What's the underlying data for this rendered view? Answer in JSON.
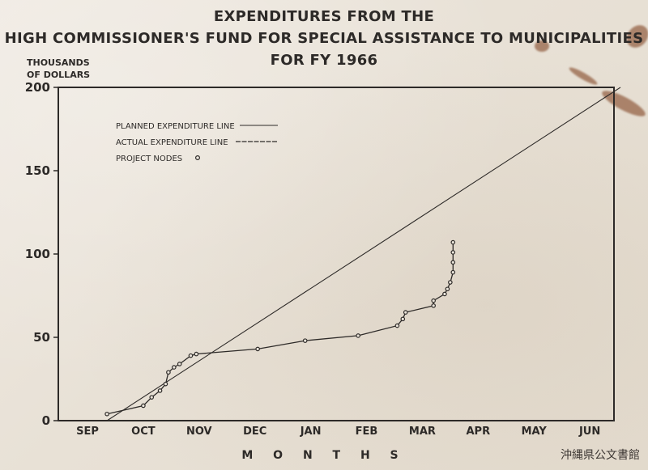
{
  "chart_data": {
    "type": "line",
    "title_lines": [
      "EXPENDITURES FROM THE",
      "HIGH COMMISSIONER'S FUND FOR SPECIAL ASSISTANCE TO MUNICIPALITIES",
      "FOR FY 1966"
    ],
    "ylabel_lines": [
      "THOUSANDS",
      "OF DOLLARS"
    ],
    "xlabel": "M O N T H S",
    "ylim": [
      0,
      200
    ],
    "yticks": [
      0,
      50,
      100,
      150,
      200
    ],
    "xticks": [
      "SEP",
      "OCT",
      "NOV",
      "DEC",
      "JAN",
      "FEB",
      "MAR",
      "APR",
      "MAY",
      "JUN"
    ],
    "grid": false,
    "legend_position": "top-left",
    "legend": [
      {
        "label": "PLANNED EXPENDITURE LINE",
        "style": "thin-line"
      },
      {
        "label": "ACTUAL EXPENDITURE LINE",
        "style": "dashed-line"
      },
      {
        "label": "PROJECT NODES",
        "style": "node"
      }
    ],
    "series": [
      {
        "name": "PLANNED EXPENDITURE LINE",
        "points": [
          [
            0.35,
            0
          ],
          [
            9.55,
            200
          ]
        ]
      },
      {
        "name": "ACTUAL EXPENDITURE LINE",
        "points": [
          [
            0.35,
            4
          ],
          [
            1.0,
            9
          ],
          [
            1.15,
            14
          ],
          [
            1.3,
            18
          ],
          [
            1.4,
            22
          ],
          [
            1.45,
            29
          ],
          [
            1.55,
            32
          ],
          [
            1.65,
            34
          ],
          [
            1.85,
            39
          ],
          [
            1.95,
            40
          ],
          [
            3.05,
            43
          ],
          [
            3.9,
            48
          ],
          [
            4.85,
            51
          ],
          [
            5.55,
            57
          ],
          [
            5.65,
            61
          ],
          [
            5.7,
            65
          ],
          [
            6.2,
            69
          ],
          [
            6.2,
            72
          ],
          [
            6.4,
            76
          ],
          [
            6.45,
            79
          ],
          [
            6.5,
            83
          ],
          [
            6.55,
            89
          ],
          [
            6.55,
            95
          ],
          [
            6.55,
            101
          ],
          [
            6.55,
            107
          ]
        ],
        "nodes": true
      }
    ]
  },
  "watermark": "沖縄県公文書館"
}
